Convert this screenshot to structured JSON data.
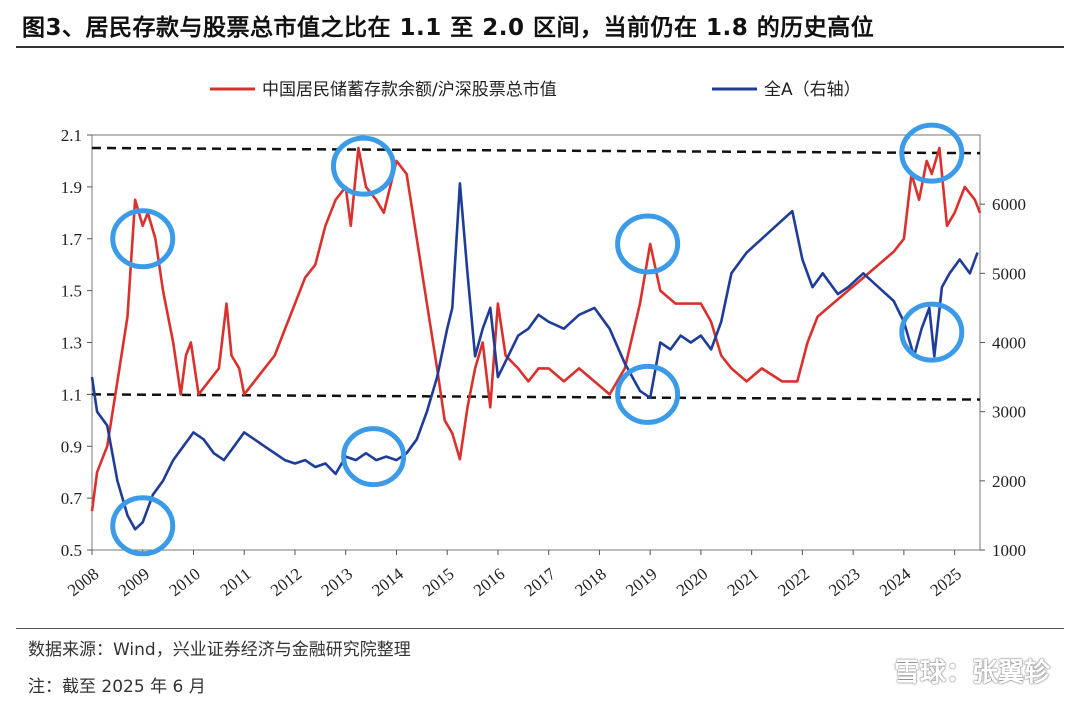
{
  "header": {
    "title": "图3、居民存款与股票总市值之比在 1.1 至 2.0 区间，当前仍在 1.8 的历史高位"
  },
  "footer": {
    "source": "数据来源：Wind，兴业证券经济与金融研究院整理",
    "note": "注：截至 2025 年 6 月",
    "watermark": "雪球：张翼轸"
  },
  "colors": {
    "ratio": "#d9322e",
    "index": "#1f3c99",
    "circle": "#3b9be8",
    "dashed": "#111111"
  },
  "chart_data": {
    "type": "line",
    "title": "",
    "x_tick_labels": [
      "2008",
      "2009",
      "2010",
      "2011",
      "2012",
      "2013",
      "2014",
      "2015",
      "2016",
      "2017",
      "2018",
      "2019",
      "2020",
      "2021",
      "2022",
      "2023",
      "2024",
      "2025"
    ],
    "y_left": {
      "range": [
        0.5,
        2.1
      ],
      "ticks": [
        "0.5",
        "0.7",
        "0.9",
        "1.1",
        "1.3",
        "1.5",
        "1.7",
        "1.9",
        "2.1"
      ]
    },
    "y_right": {
      "range": [
        1000,
        7000
      ],
      "ticks": [
        "1000",
        "2000",
        "3000",
        "4000",
        "5000",
        "6000"
      ]
    },
    "legend_position": "top",
    "series": [
      {
        "name": "中国居民储蓄存款余额/沪深股票总市值",
        "axis": "left",
        "points": [
          [
            2008.0,
            0.65
          ],
          [
            2008.1,
            0.8
          ],
          [
            2008.3,
            0.9
          ],
          [
            2008.5,
            1.15
          ],
          [
            2008.7,
            1.4
          ],
          [
            2008.85,
            1.85
          ],
          [
            2009.0,
            1.75
          ],
          [
            2009.1,
            1.8
          ],
          [
            2009.25,
            1.7
          ],
          [
            2009.4,
            1.5
          ],
          [
            2009.6,
            1.3
          ],
          [
            2009.75,
            1.1
          ],
          [
            2009.85,
            1.25
          ],
          [
            2009.95,
            1.3
          ],
          [
            2010.1,
            1.1
          ],
          [
            2010.3,
            1.15
          ],
          [
            2010.5,
            1.2
          ],
          [
            2010.65,
            1.45
          ],
          [
            2010.75,
            1.25
          ],
          [
            2010.9,
            1.2
          ],
          [
            2011.0,
            1.1
          ],
          [
            2011.2,
            1.15
          ],
          [
            2011.4,
            1.2
          ],
          [
            2011.6,
            1.25
          ],
          [
            2011.8,
            1.35
          ],
          [
            2012.0,
            1.45
          ],
          [
            2012.2,
            1.55
          ],
          [
            2012.4,
            1.6
          ],
          [
            2012.6,
            1.75
          ],
          [
            2012.8,
            1.85
          ],
          [
            2013.0,
            1.9
          ],
          [
            2013.1,
            1.75
          ],
          [
            2013.25,
            2.05
          ],
          [
            2013.4,
            1.9
          ],
          [
            2013.6,
            1.85
          ],
          [
            2013.75,
            1.8
          ],
          [
            2014.0,
            2.0
          ],
          [
            2014.2,
            1.95
          ],
          [
            2014.4,
            1.7
          ],
          [
            2014.6,
            1.45
          ],
          [
            2014.8,
            1.2
          ],
          [
            2014.95,
            1.0
          ],
          [
            2015.1,
            0.95
          ],
          [
            2015.25,
            0.85
          ],
          [
            2015.4,
            1.05
          ],
          [
            2015.55,
            1.2
          ],
          [
            2015.7,
            1.3
          ],
          [
            2015.85,
            1.05
          ],
          [
            2016.0,
            1.45
          ],
          [
            2016.15,
            1.25
          ],
          [
            2016.4,
            1.2
          ],
          [
            2016.6,
            1.15
          ],
          [
            2016.8,
            1.2
          ],
          [
            2017.0,
            1.2
          ],
          [
            2017.3,
            1.15
          ],
          [
            2017.6,
            1.2
          ],
          [
            2017.9,
            1.15
          ],
          [
            2018.2,
            1.1
          ],
          [
            2018.5,
            1.2
          ],
          [
            2018.8,
            1.45
          ],
          [
            2019.0,
            1.68
          ],
          [
            2019.2,
            1.5
          ],
          [
            2019.5,
            1.45
          ],
          [
            2019.8,
            1.45
          ],
          [
            2020.0,
            1.45
          ],
          [
            2020.2,
            1.38
          ],
          [
            2020.4,
            1.25
          ],
          [
            2020.6,
            1.2
          ],
          [
            2020.9,
            1.15
          ],
          [
            2021.2,
            1.2
          ],
          [
            2021.6,
            1.15
          ],
          [
            2021.9,
            1.15
          ],
          [
            2022.1,
            1.3
          ],
          [
            2022.3,
            1.4
          ],
          [
            2022.6,
            1.45
          ],
          [
            2022.9,
            1.5
          ],
          [
            2023.2,
            1.55
          ],
          [
            2023.5,
            1.6
          ],
          [
            2023.8,
            1.65
          ],
          [
            2024.0,
            1.7
          ],
          [
            2024.15,
            1.95
          ],
          [
            2024.3,
            1.85
          ],
          [
            2024.45,
            2.0
          ],
          [
            2024.55,
            1.95
          ],
          [
            2024.7,
            2.05
          ],
          [
            2024.85,
            1.75
          ],
          [
            2025.0,
            1.8
          ],
          [
            2025.2,
            1.9
          ],
          [
            2025.4,
            1.85
          ],
          [
            2025.5,
            1.8
          ]
        ]
      },
      {
        "name": "全A（右轴）",
        "axis": "right",
        "points": [
          [
            2008.0,
            3500
          ],
          [
            2008.1,
            3000
          ],
          [
            2008.3,
            2800
          ],
          [
            2008.5,
            2000
          ],
          [
            2008.7,
            1500
          ],
          [
            2008.85,
            1300
          ],
          [
            2009.0,
            1400
          ],
          [
            2009.2,
            1800
          ],
          [
            2009.4,
            2000
          ],
          [
            2009.6,
            2300
          ],
          [
            2009.8,
            2500
          ],
          [
            2010.0,
            2700
          ],
          [
            2010.2,
            2600
          ],
          [
            2010.4,
            2400
          ],
          [
            2010.6,
            2300
          ],
          [
            2010.8,
            2500
          ],
          [
            2011.0,
            2700
          ],
          [
            2011.2,
            2600
          ],
          [
            2011.4,
            2500
          ],
          [
            2011.6,
            2400
          ],
          [
            2011.8,
            2300
          ],
          [
            2012.0,
            2250
          ],
          [
            2012.2,
            2300
          ],
          [
            2012.4,
            2200
          ],
          [
            2012.6,
            2250
          ],
          [
            2012.8,
            2100
          ],
          [
            2013.0,
            2350
          ],
          [
            2013.2,
            2300
          ],
          [
            2013.4,
            2400
          ],
          [
            2013.6,
            2300
          ],
          [
            2013.8,
            2350
          ],
          [
            2014.0,
            2300
          ],
          [
            2014.2,
            2400
          ],
          [
            2014.4,
            2600
          ],
          [
            2014.6,
            3000
          ],
          [
            2014.8,
            3500
          ],
          [
            2015.0,
            4200
          ],
          [
            2015.1,
            4500
          ],
          [
            2015.25,
            6300
          ],
          [
            2015.4,
            5000
          ],
          [
            2015.55,
            3800
          ],
          [
            2015.7,
            4200
          ],
          [
            2015.85,
            4500
          ],
          [
            2016.0,
            3500
          ],
          [
            2016.2,
            3800
          ],
          [
            2016.4,
            4100
          ],
          [
            2016.6,
            4200
          ],
          [
            2016.8,
            4400
          ],
          [
            2017.0,
            4300
          ],
          [
            2017.3,
            4200
          ],
          [
            2017.6,
            4400
          ],
          [
            2017.9,
            4500
          ],
          [
            2018.2,
            4200
          ],
          [
            2018.5,
            3700
          ],
          [
            2018.8,
            3300
          ],
          [
            2019.0,
            3200
          ],
          [
            2019.2,
            4000
          ],
          [
            2019.4,
            3900
          ],
          [
            2019.6,
            4100
          ],
          [
            2019.8,
            4000
          ],
          [
            2020.0,
            4100
          ],
          [
            2020.2,
            3900
          ],
          [
            2020.4,
            4300
          ],
          [
            2020.6,
            5000
          ],
          [
            2020.9,
            5300
          ],
          [
            2021.2,
            5500
          ],
          [
            2021.5,
            5700
          ],
          [
            2021.8,
            5900
          ],
          [
            2022.0,
            5200
          ],
          [
            2022.2,
            4800
          ],
          [
            2022.4,
            5000
          ],
          [
            2022.7,
            4700
          ],
          [
            2022.9,
            4800
          ],
          [
            2023.2,
            5000
          ],
          [
            2023.5,
            4800
          ],
          [
            2023.8,
            4600
          ],
          [
            2024.0,
            4300
          ],
          [
            2024.2,
            3800
          ],
          [
            2024.35,
            4200
          ],
          [
            2024.5,
            4500
          ],
          [
            2024.6,
            3800
          ],
          [
            2024.75,
            4800
          ],
          [
            2024.9,
            5000
          ],
          [
            2025.1,
            5200
          ],
          [
            2025.3,
            5000
          ],
          [
            2025.45,
            5300
          ]
        ]
      }
    ],
    "reference_lines": [
      {
        "axis": "left",
        "from": [
          2008.0,
          2.05
        ],
        "to": [
          2025.5,
          2.03
        ]
      },
      {
        "axis": "left",
        "from": [
          2008.0,
          1.1
        ],
        "to": [
          2025.5,
          1.08
        ]
      }
    ],
    "annotations_circles": [
      {
        "x": 2009.0,
        "y": 1.7,
        "axis": "left",
        "label": ""
      },
      {
        "x": 2009.0,
        "y": 1350,
        "axis": "right",
        "label": ""
      },
      {
        "x": 2013.35,
        "y": 1.98,
        "axis": "left",
        "label": ""
      },
      {
        "x": 2013.55,
        "y": 2350,
        "axis": "right",
        "label": ""
      },
      {
        "x": 2018.95,
        "y": 1.68,
        "axis": "left",
        "label": ""
      },
      {
        "x": 2018.95,
        "y": 3250,
        "axis": "right",
        "label": ""
      },
      {
        "x": 2024.55,
        "y": 2.03,
        "axis": "left",
        "label": ""
      },
      {
        "x": 2024.55,
        "y": 4150,
        "axis": "right",
        "label": ""
      }
    ]
  }
}
